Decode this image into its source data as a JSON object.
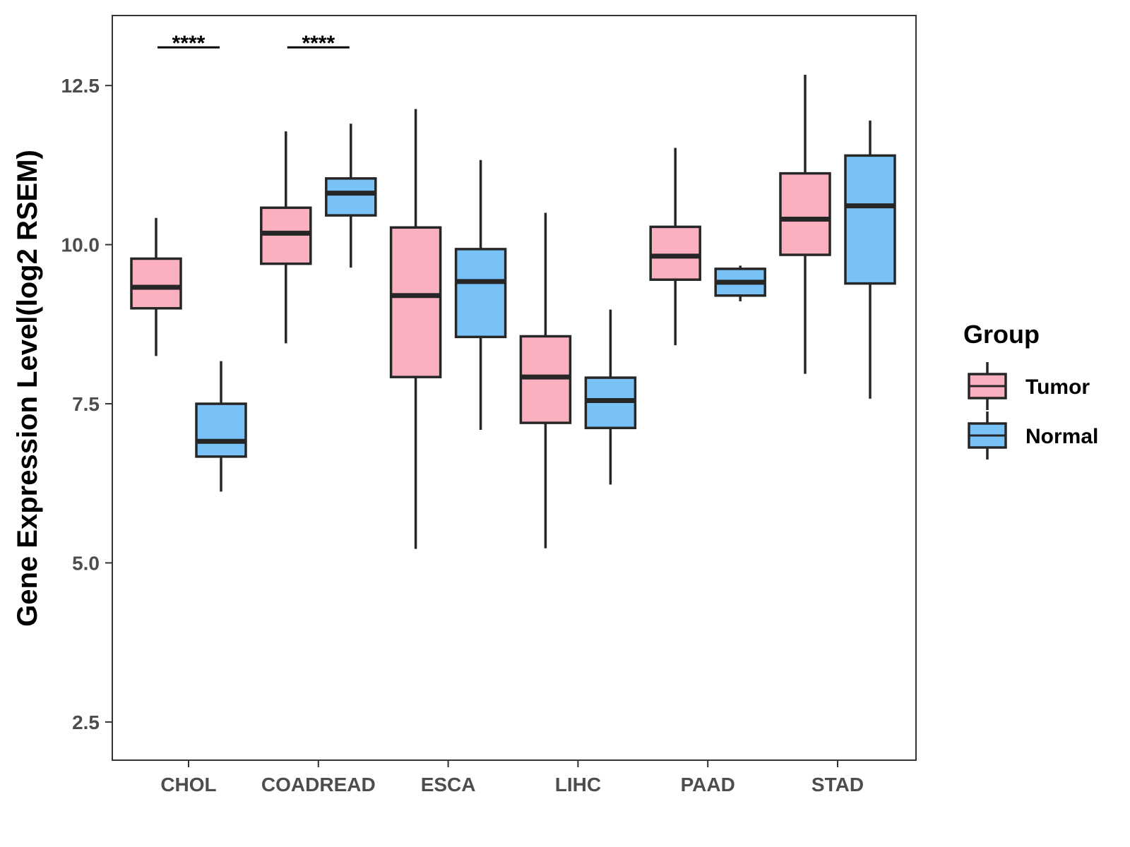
{
  "chart_data": {
    "type": "boxplot",
    "title": "",
    "xlabel": "",
    "ylabel": "Gene Expression Level(log2 RSEM)",
    "ylim": [
      1.9,
      13.6
    ],
    "yticks": [
      2.5,
      5.0,
      7.5,
      10.0,
      12.5
    ],
    "ytick_labels": [
      "2.5",
      "5.0",
      "7.5",
      "10.0",
      "12.5"
    ],
    "grid": false,
    "legend": {
      "title": "Group",
      "placement": "right"
    },
    "categories": [
      "CHOL",
      "COADREAD",
      "ESCA",
      "LIHC",
      "PAAD",
      "STAD"
    ],
    "series": [
      {
        "name": "Tumor",
        "color": "#fbb0c0",
        "boxes": [
          {
            "min": 8.25,
            "q1": 9.0,
            "median": 9.33,
            "q3": 9.78,
            "max": 10.42
          },
          {
            "min": 8.45,
            "q1": 9.7,
            "median": 10.18,
            "q3": 10.58,
            "max": 11.78
          },
          {
            "min": 5.22,
            "q1": 7.92,
            "median": 9.2,
            "q3": 10.27,
            "max": 12.13
          },
          {
            "min": 5.23,
            "q1": 7.2,
            "median": 7.92,
            "q3": 8.56,
            "max": 10.5
          },
          {
            "min": 8.42,
            "q1": 9.45,
            "median": 9.82,
            "q3": 10.28,
            "max": 11.52
          },
          {
            "min": 7.97,
            "q1": 9.84,
            "median": 10.4,
            "q3": 11.12,
            "max": 12.67
          }
        ]
      },
      {
        "name": "Normal",
        "color": "#79c2f8",
        "boxes": [
          {
            "min": 6.12,
            "q1": 6.67,
            "median": 6.91,
            "q3": 7.5,
            "max": 8.17
          },
          {
            "min": 9.64,
            "q1": 10.46,
            "median": 10.81,
            "q3": 11.04,
            "max": 11.9
          },
          {
            "min": 7.09,
            "q1": 8.55,
            "median": 9.42,
            "q3": 9.93,
            "max": 11.33
          },
          {
            "min": 6.23,
            "q1": 7.12,
            "median": 7.55,
            "q3": 7.91,
            "max": 8.98
          },
          {
            "min": 9.11,
            "q1": 9.2,
            "median": 9.41,
            "q3": 9.62,
            "max": 9.67
          },
          {
            "min": 7.58,
            "q1": 9.39,
            "median": 10.61,
            "q3": 11.4,
            "max": 11.95
          }
        ]
      }
    ],
    "annotations": [
      {
        "category": "CHOL",
        "text": "****",
        "y": 13.1
      },
      {
        "category": "COADREAD",
        "text": "****",
        "y": 13.1
      }
    ]
  }
}
